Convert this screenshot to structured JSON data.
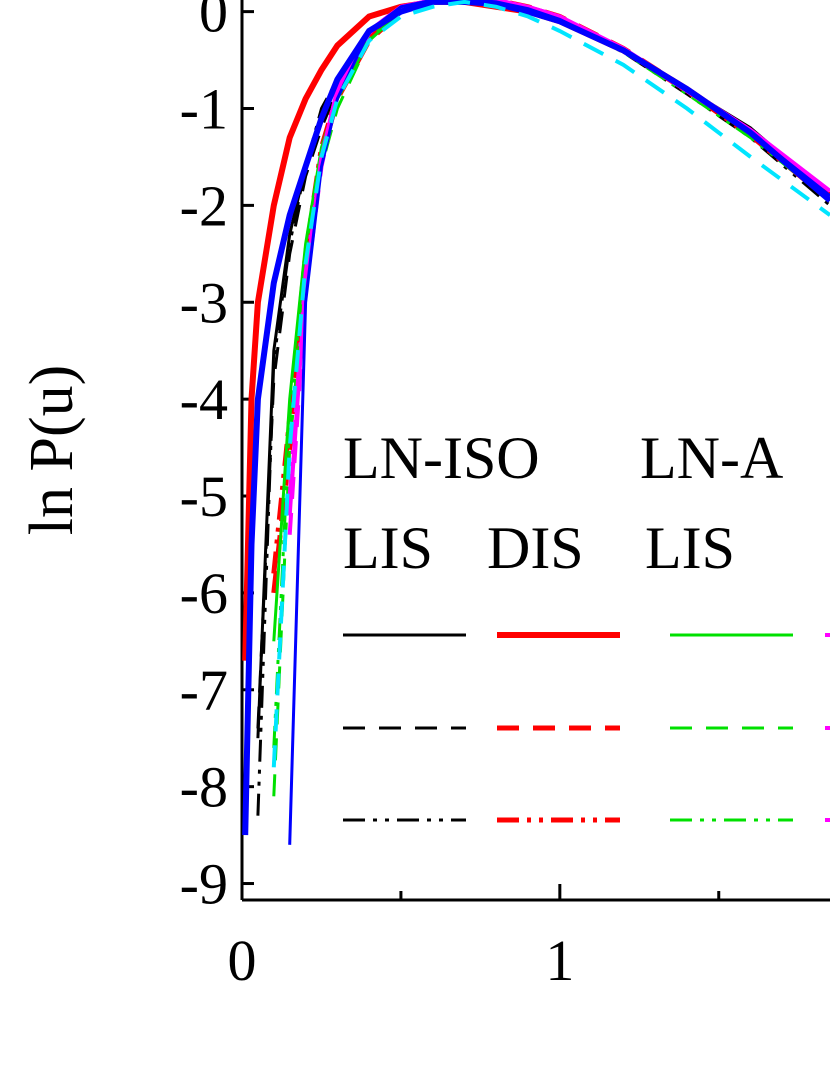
{
  "chart_data": {
    "type": "line",
    "ylabel": "ln P(u)",
    "x": [
      0.01,
      0.03,
      0.05,
      0.1,
      0.15,
      0.2,
      0.25,
      0.3,
      0.4,
      0.5,
      0.6,
      0.7,
      0.8,
      0.9,
      1.0,
      1.2,
      1.4,
      1.6,
      1.85
    ],
    "xlim": [
      0,
      1.85
    ],
    "ylim": [
      -9.17,
      0.12
    ],
    "xticks": [
      0,
      1
    ],
    "xminorticks": [
      0.5,
      1.5
    ],
    "yticks": [
      0,
      -1,
      -2,
      -3,
      -4,
      -5,
      -6,
      -7,
      -8,
      -9
    ],
    "legend": {
      "groups": [
        "LN-ISO",
        "LN-A"
      ],
      "columns": [
        "LIS",
        "DIS",
        "LIS"
      ]
    },
    "series": [
      {
        "color": "#000000",
        "dash": "solid",
        "width": 3,
        "values": [
          null,
          null,
          -7.5,
          -3.5,
          -2.3,
          -1.6,
          -1.1,
          -0.7,
          -0.2,
          0.0,
          0.1,
          0.12,
          0.1,
          0.0,
          -0.1,
          -0.4,
          -0.8,
          -1.2,
          -1.9
        ]
      },
      {
        "color": "#000000",
        "dash": "dashed",
        "width": 3,
        "values": [
          null,
          null,
          -7.4,
          -3.8,
          -2.5,
          -1.7,
          -1.2,
          -0.8,
          -0.25,
          0.0,
          0.1,
          0.12,
          0.1,
          0.02,
          -0.1,
          -0.4,
          -0.8,
          -1.25,
          -1.9
        ]
      },
      {
        "color": "#000000",
        "dash": "dashdot",
        "width": 3,
        "values": [
          null,
          null,
          -8.3,
          -3.6,
          -2.4,
          -1.6,
          -1.0,
          -0.7,
          -0.2,
          0.0,
          0.1,
          0.12,
          0.1,
          0.0,
          -0.1,
          -0.42,
          -0.85,
          -1.3,
          -2.0
        ]
      },
      {
        "color": "#ff0000",
        "dash": "solid",
        "width": 6,
        "values": [
          -6.7,
          -4.0,
          -3.0,
          -2.0,
          -1.3,
          -0.9,
          -0.6,
          -0.35,
          -0.05,
          0.05,
          0.1,
          0.1,
          0.05,
          0.0,
          -0.1,
          -0.4,
          -0.8,
          -1.25,
          -1.9
        ]
      },
      {
        "color": "#ff0000",
        "dash": "dashed",
        "width": 5,
        "values": [
          null,
          null,
          null,
          -6.0,
          -4.5,
          -2.6,
          -1.5,
          -0.9,
          -0.3,
          0.0,
          0.12,
          0.15,
          0.12,
          0.05,
          -0.05,
          -0.38,
          -0.8,
          -1.25,
          -1.9
        ]
      },
      {
        "color": "#ff0000",
        "dash": "dashdot",
        "width": 5,
        "values": [
          null,
          null,
          null,
          -5.8,
          -4.2,
          -2.5,
          -1.4,
          -0.85,
          -0.25,
          0.0,
          0.12,
          0.14,
          0.12,
          0.04,
          -0.06,
          -0.4,
          -0.82,
          -1.28,
          -1.95
        ]
      },
      {
        "color": "#00e000",
        "dash": "solid",
        "width": 3,
        "values": [
          null,
          null,
          null,
          -6.5,
          -4.0,
          -2.4,
          -1.4,
          -0.9,
          -0.3,
          0.0,
          0.1,
          0.13,
          0.1,
          0.03,
          -0.08,
          -0.4,
          -0.8,
          -1.25,
          -1.95
        ]
      },
      {
        "color": "#00e000",
        "dash": "dashed",
        "width": 3,
        "values": [
          null,
          null,
          null,
          -8.1,
          -4.5,
          -2.7,
          -1.6,
          -1.0,
          -0.3,
          0.0,
          0.12,
          0.15,
          0.12,
          0.05,
          -0.05,
          -0.38,
          -0.8,
          -1.25,
          -1.9
        ]
      },
      {
        "color": "#00e000",
        "dash": "dashdot",
        "width": 3,
        "values": [
          null,
          null,
          null,
          -7.6,
          -4.2,
          -2.5,
          -1.5,
          -0.9,
          -0.28,
          0.0,
          0.1,
          0.13,
          0.1,
          0.03,
          -0.08,
          -0.42,
          -0.85,
          -1.3,
          -1.95
        ]
      },
      {
        "color": "#ff00ff",
        "dash": "solid",
        "width": 4,
        "values": [
          null,
          null,
          null,
          null,
          -5.2,
          -2.8,
          -1.5,
          -0.8,
          -0.2,
          0.05,
          0.12,
          0.15,
          0.12,
          0.05,
          -0.05,
          -0.38,
          -0.8,
          -1.22,
          -1.85
        ]
      },
      {
        "color": "#ff00ff",
        "dash": "dashed",
        "width": 4,
        "values": [
          null,
          null,
          null,
          null,
          -5.4,
          -2.9,
          -1.6,
          -0.85,
          -0.22,
          0.05,
          0.12,
          0.14,
          0.12,
          0.05,
          -0.05,
          -0.4,
          -0.82,
          -1.25,
          -1.9
        ]
      },
      {
        "color": "#ff00ff",
        "dash": "dashdot",
        "width": 4,
        "values": [
          null,
          null,
          null,
          null,
          -5.0,
          -2.7,
          -1.5,
          -0.8,
          -0.2,
          0.05,
          0.12,
          0.14,
          0.12,
          0.05,
          -0.05,
          -0.4,
          -0.82,
          -1.25,
          -1.9
        ]
      },
      {
        "color": "#0000ff",
        "dash": "solid",
        "width": 6,
        "values": [
          -8.5,
          -5.5,
          -4.0,
          -2.8,
          -2.1,
          -1.6,
          -1.1,
          -0.7,
          -0.2,
          0.0,
          0.1,
          0.1,
          0.08,
          0.0,
          -0.1,
          -0.4,
          -0.8,
          -1.25,
          -1.95
        ]
      },
      {
        "color": "#0000ff",
        "dash": "solid",
        "width": 3,
        "values": [
          null,
          null,
          null,
          null,
          -8.6,
          -3.0,
          -1.6,
          -0.9,
          -0.2,
          0.05,
          0.12,
          0.13,
          0.1,
          0.03,
          -0.08,
          -0.4,
          -0.82,
          -1.25,
          -1.9
        ]
      },
      {
        "color": "#00e5ff",
        "dash": "dashed",
        "width": 4,
        "values": [
          null,
          null,
          null,
          -7.8,
          -4.5,
          -2.6,
          -1.5,
          -0.9,
          -0.3,
          -0.05,
          0.05,
          0.1,
          0.05,
          -0.05,
          -0.2,
          -0.55,
          -1.0,
          -1.5,
          -2.1
        ]
      }
    ]
  }
}
